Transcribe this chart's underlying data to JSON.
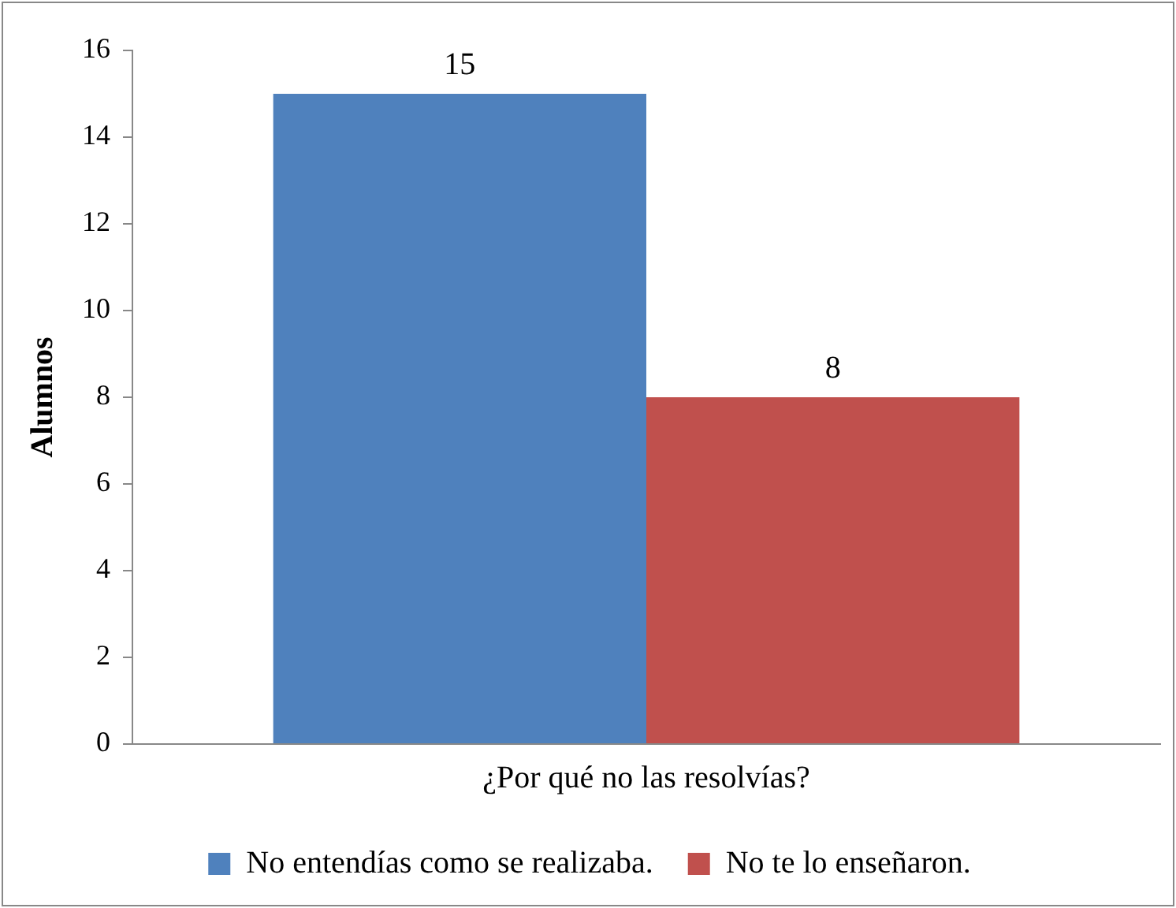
{
  "chart_data": {
    "type": "bar",
    "ylabel": "Alumnos",
    "categories": [
      "¿Por qué no las resolvías?"
    ],
    "series": [
      {
        "name": "No entendías como se realizaba.",
        "color": "#4f81bd",
        "values": [
          15
        ]
      },
      {
        "name": "No te lo enseñaron.",
        "color": "#c0504d",
        "values": [
          8
        ]
      }
    ],
    "ylim": [
      0,
      16
    ],
    "yticks": [
      0,
      2,
      4,
      6,
      8,
      10,
      12,
      14,
      16
    ],
    "grid": false,
    "legend": "bottom",
    "data_labels": true
  }
}
